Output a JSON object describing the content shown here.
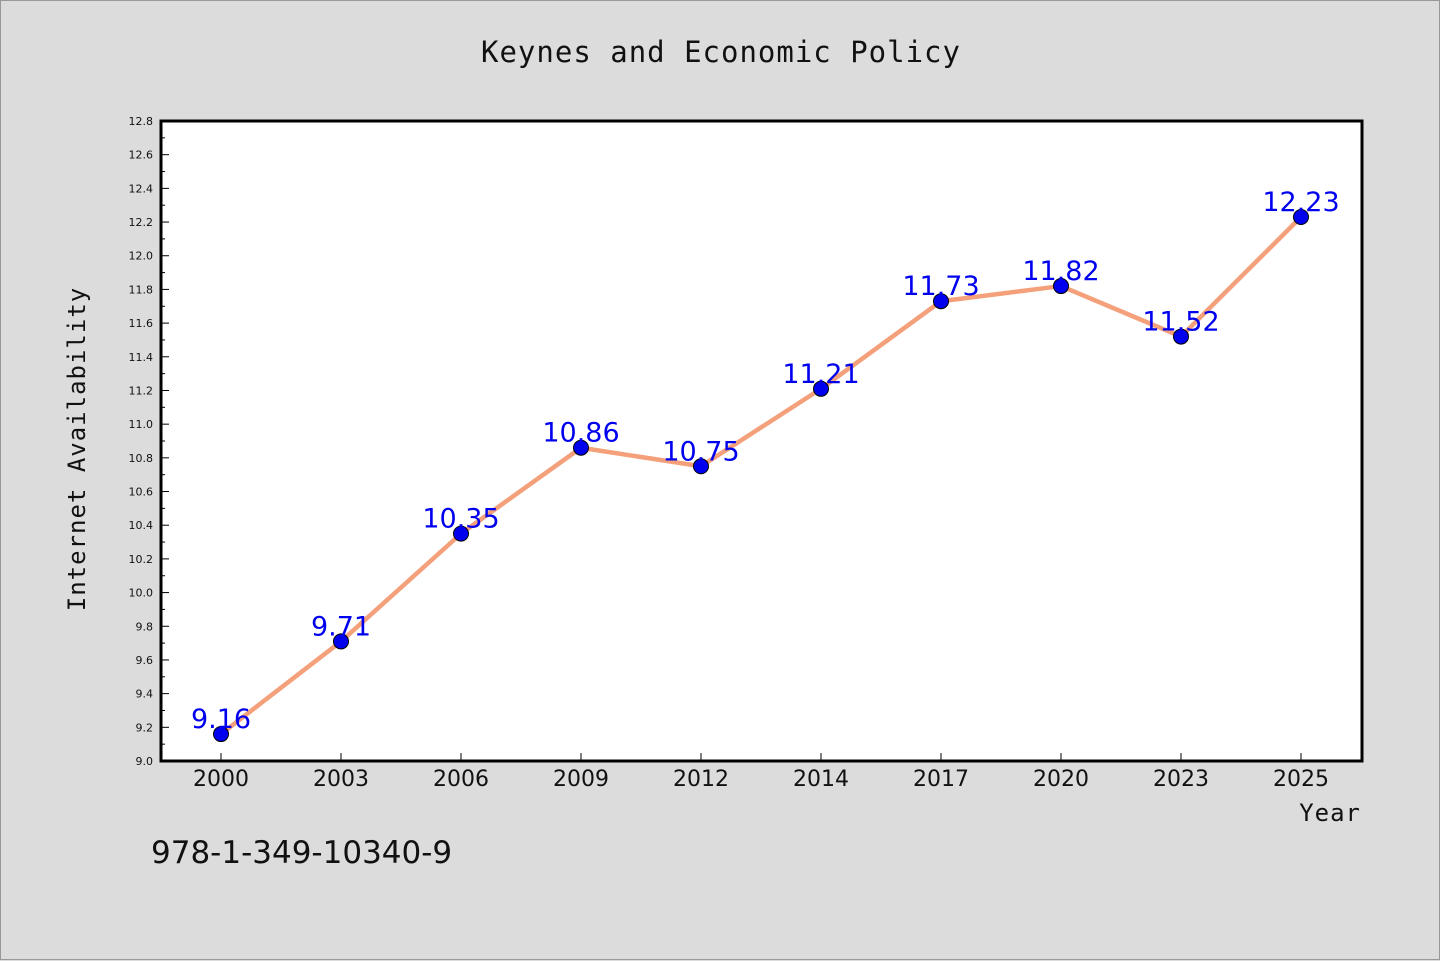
{
  "page": {
    "title": "Keynes and Economic Policy",
    "isbn": "978-1-349-10340-9"
  },
  "chart_data": {
    "type": "line",
    "title": "Keynes and Economic Policy",
    "xlabel": "Year",
    "ylabel": "Internet Availability",
    "categories": [
      "2000",
      "2003",
      "2006",
      "2009",
      "2012",
      "2014",
      "2017",
      "2020",
      "2023",
      "2025"
    ],
    "series": [
      {
        "values": [
          9.16,
          9.71,
          10.35,
          10.86,
          10.75,
          11.21,
          11.73,
          11.82,
          11.52,
          12.23
        ],
        "labels": [
          "9.16",
          "9.71",
          "10.35",
          "10.86",
          "10.75",
          "11.21",
          "11.73",
          "11.82",
          "11.52",
          "12.23"
        ],
        "line_color": "#f4a07a",
        "marker_color": "#0000ee"
      }
    ],
    "ylim": [
      9.0,
      12.8
    ],
    "yticks": [
      "9.0",
      "9.2",
      "9.4",
      "9.6",
      "9.8",
      "10.0",
      "10.2",
      "10.4",
      "10.6",
      "10.8",
      "11.0",
      "11.2",
      "11.4",
      "11.6",
      "11.8",
      "12.0",
      "12.2",
      "12.4",
      "12.6",
      "12.8"
    ],
    "grid": false,
    "legend": "none"
  }
}
